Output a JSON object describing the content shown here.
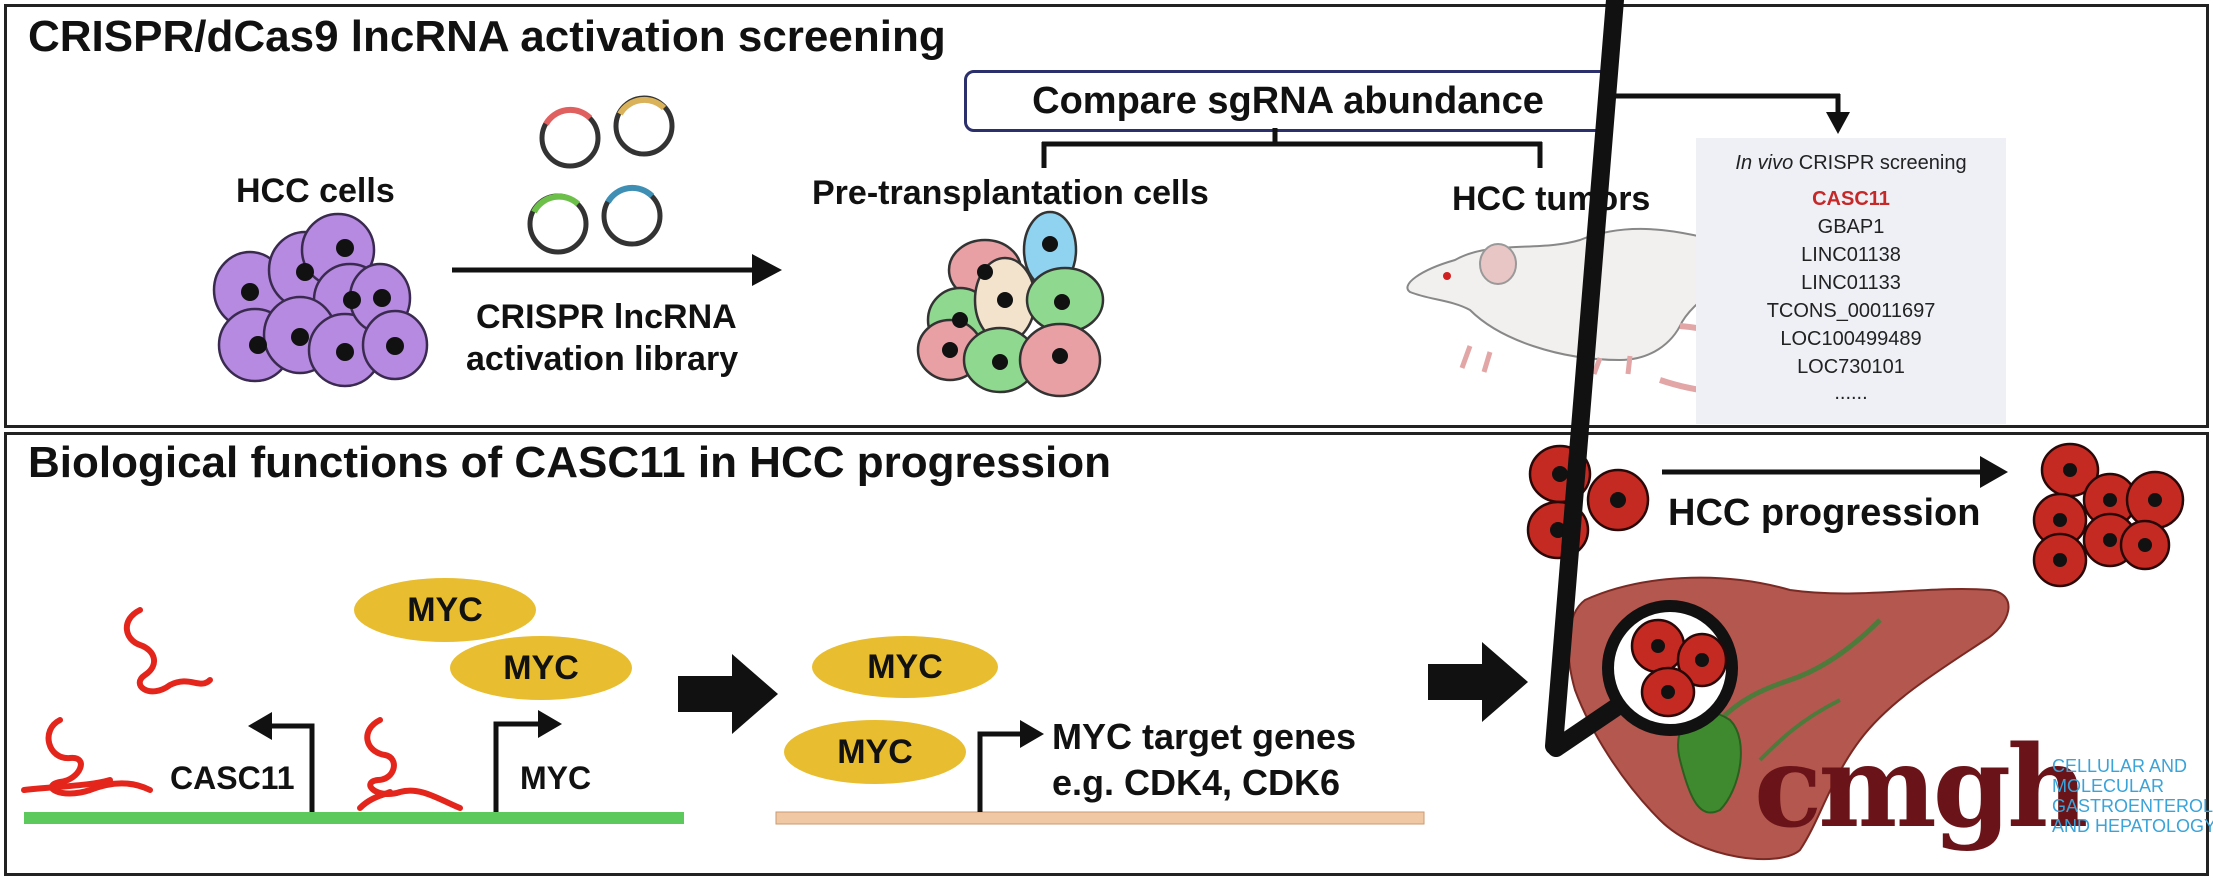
{
  "top_panel": {
    "title": "CRISPR/dCas9 lncRNA activation screening",
    "hcc_cells_label": "HCC cells",
    "library_label_line1": "CRISPR lncRNA",
    "library_label_line2": "activation library",
    "compare_box": "Compare sgRNA abundance",
    "pre_transplant_label": "Pre-transplantation cells",
    "hcc_tumors_label": "HCC tumors",
    "screen_list": {
      "header_italic": "In vivo",
      "header_rest": " CRISPR screening",
      "highlight": "CASC11",
      "items": [
        "GBAP1",
        "LINC01138",
        "LINC01133",
        "TCONS_00011697",
        "LOC100499489",
        "LOC730101",
        "......"
      ]
    }
  },
  "bottom_panel": {
    "title": "Biological functions of CASC11 in HCC progression",
    "casc11_label": "CASC11",
    "myc_gene_label": "MYC",
    "myc_protein": "MYC",
    "target_genes_line1": "MYC target genes",
    "target_genes_line2": "e.g. CDK4, CDK6",
    "progression_label": "HCC progression"
  },
  "logo": {
    "word": "cmgh",
    "journal_lines": [
      "CELLULAR AND",
      "MOLECULAR",
      "GASTROENTEROLOGY",
      "AND HEPATOLOGY"
    ]
  },
  "colors": {
    "purple_cell": "#b58ae0",
    "red_cell": "#c52a22",
    "pink_cell": "#e8a0a4",
    "green_cell": "#8fd88f",
    "myc_pill": "#e8bd2f",
    "green_dna": "#5bc95b",
    "tan_dna": "#f1c8a4",
    "liver": "#b4574e",
    "rna": "#e3251c",
    "highlight": "#c62828",
    "logo_text": "#6a1419",
    "journal_text": "#3aa3d9"
  }
}
